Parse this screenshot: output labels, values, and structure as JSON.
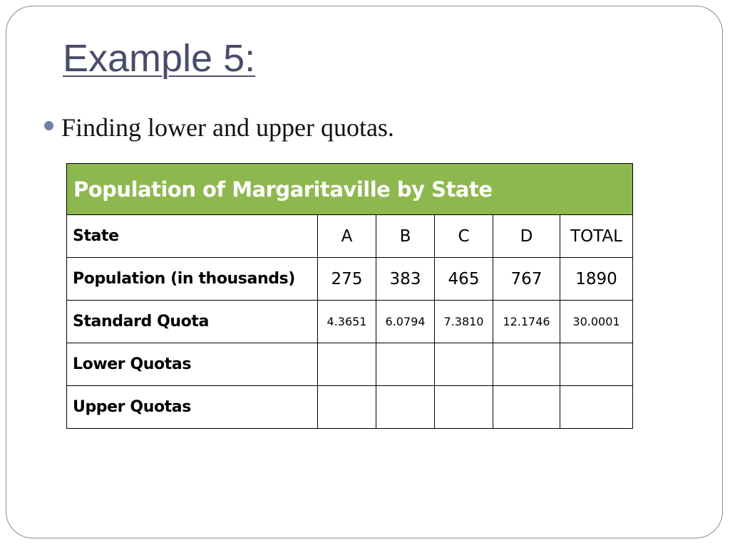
{
  "slide": {
    "title": "Example 5:",
    "bullet": "Finding lower and upper quotas."
  },
  "table": {
    "caption": "Population of Margaritaville by State",
    "rows": [
      {
        "label": "State",
        "cells": [
          "A",
          "B",
          "C",
          "D",
          "TOTAL"
        ]
      },
      {
        "label": "Population (in thousands)",
        "cells": [
          "275",
          "383",
          "465",
          "767",
          "1890"
        ]
      },
      {
        "label": "Standard Quota",
        "cells": [
          "4.3651",
          "6.0794",
          "7.3810",
          "12.1746",
          "30.0001"
        ]
      },
      {
        "label": "Lower Quotas",
        "cells": [
          "",
          "",
          "",
          "",
          ""
        ]
      },
      {
        "label": "Upper Quotas",
        "cells": [
          "",
          "",
          "",
          "",
          ""
        ]
      }
    ]
  },
  "colors": {
    "header_background": "#8db84f",
    "title_text": "#4a4c6a",
    "bullet": "#6c82a8"
  },
  "icons": {
    "bullet": "bullet-dot-icon"
  }
}
